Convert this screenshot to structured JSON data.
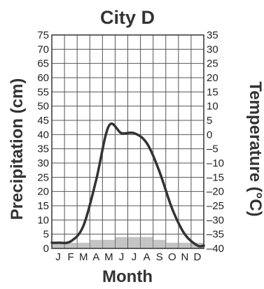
{
  "chart_data": {
    "type": "bar",
    "title": "City D",
    "xlabel": "Month",
    "ylabel_left": "Precipitation (cm)",
    "ylabel_right": "Temperature (°C)",
    "categories": [
      "J",
      "F",
      "M",
      "A",
      "M",
      "J",
      "J",
      "A",
      "S",
      "O",
      "N",
      "D"
    ],
    "left_ticks": [
      "75",
      "70",
      "65",
      "60",
      "55",
      "50",
      "45",
      "40",
      "35",
      "30",
      "25",
      "20",
      "15",
      "10",
      "5",
      "0"
    ],
    "right_ticks": [
      "35",
      "30",
      "25",
      "20",
      "15",
      "10",
      "5",
      "0",
      "–5",
      "–10",
      "–15",
      "–20",
      "–25",
      "–30",
      "–35",
      "–40"
    ],
    "ylim_left": [
      0,
      75
    ],
    "ylim_right": [
      -40,
      35
    ],
    "grid": true,
    "series": [
      {
        "type": "bar",
        "axis": "left",
        "values": [
          2,
          2,
          2,
          3,
          3,
          4,
          4,
          4,
          3,
          2,
          2,
          2
        ]
      },
      {
        "type": "line",
        "axis": "right",
        "values": [
          -38,
          -37.5,
          -32,
          -16,
          3,
          0.5,
          0.5,
          -3,
          -13,
          -26,
          -35,
          -39
        ]
      }
    ],
    "colors": {
      "bars": "#c4c4c4",
      "line": "#333333",
      "grid": "#555555"
    }
  }
}
